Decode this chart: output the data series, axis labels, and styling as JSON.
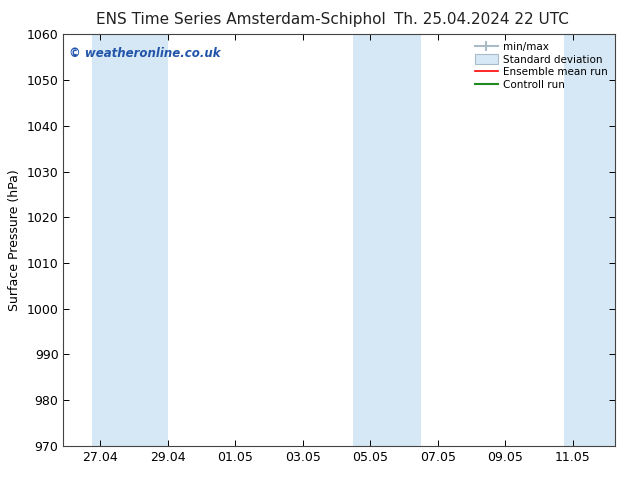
{
  "title_left": "ENS Time Series Amsterdam-Schiphol",
  "title_right": "Th. 25.04.2024 22 UTC",
  "ylabel": "Surface Pressure (hPa)",
  "ylim": [
    970,
    1060
  ],
  "yticks": [
    970,
    980,
    990,
    1000,
    1010,
    1020,
    1030,
    1040,
    1050,
    1060
  ],
  "xtick_labels": [
    "27.04",
    "29.04",
    "01.05",
    "03.05",
    "05.05",
    "07.05",
    "09.05",
    "11.05"
  ],
  "band_color": "#D6E8F5",
  "watermark_text": "© weatheronline.co.uk",
  "watermark_color": "#2255AA",
  "bg_color": "#FFFFFF",
  "title_fontsize": 11,
  "axis_label_fontsize": 9,
  "tick_fontsize": 9,
  "shaded": [
    [
      2024,
      4,
      26,
      18,
      2024,
      4,
      27,
      18
    ],
    [
      2024,
      4,
      27,
      18,
      2024,
      4,
      29,
      0
    ],
    [
      2024,
      5,
      4,
      12,
      2024,
      5,
      5,
      12
    ],
    [
      2024,
      5,
      5,
      12,
      2024,
      5,
      6,
      12
    ],
    [
      2024,
      5,
      10,
      18,
      2024,
      5,
      12,
      18
    ]
  ]
}
